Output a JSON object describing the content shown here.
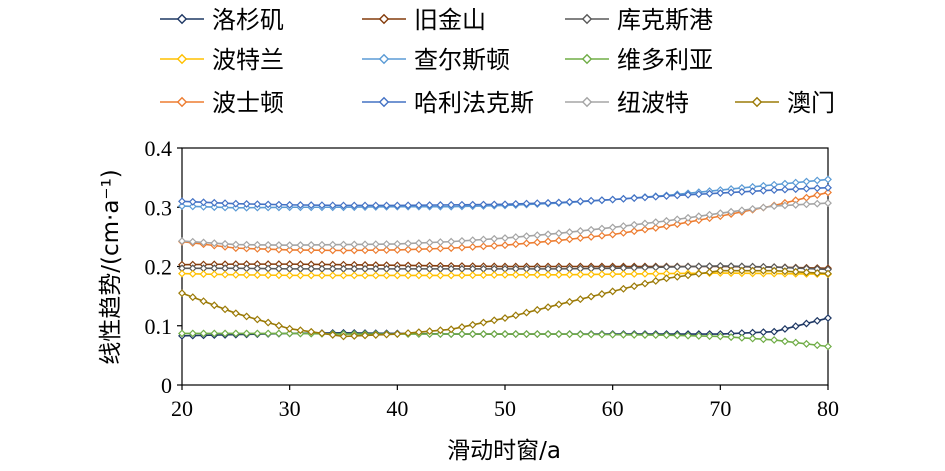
{
  "chart_data": {
    "type": "line",
    "title": "",
    "xlabel": "滑动时窗/a",
    "ylabel": "线性趋势/(cm·a⁻¹)",
    "xlim": [
      20,
      80
    ],
    "ylim": [
      0,
      0.4
    ],
    "xticks": [
      "20",
      "30",
      "40",
      "50",
      "60",
      "70",
      "80"
    ],
    "yticks": [
      "0",
      "0.1",
      "0.2",
      "0.3",
      "0.4"
    ],
    "grid": false,
    "legend_position": "top",
    "x": [
      20,
      25,
      30,
      35,
      40,
      45,
      50,
      55,
      60,
      65,
      70,
      75,
      80
    ],
    "series": [
      {
        "name": "洛杉矶",
        "color": "#1f3864",
        "values": [
          0.083,
          0.085,
          0.087,
          0.088,
          0.087,
          0.086,
          0.086,
          0.086,
          0.086,
          0.086,
          0.086,
          0.09,
          0.113
        ]
      },
      {
        "name": "旧金山",
        "color": "#843c0c",
        "values": [
          0.203,
          0.204,
          0.204,
          0.203,
          0.202,
          0.201,
          0.2,
          0.2,
          0.2,
          0.2,
          0.2,
          0.199,
          0.197
        ]
      },
      {
        "name": "库克斯港",
        "color": "#595959",
        "values": [
          0.197,
          0.197,
          0.196,
          0.196,
          0.196,
          0.196,
          0.196,
          0.196,
          0.197,
          0.199,
          0.201,
          0.199,
          0.195
        ]
      },
      {
        "name": "波特兰",
        "color": "#ffc000",
        "values": [
          0.188,
          0.186,
          0.185,
          0.185,
          0.185,
          0.185,
          0.186,
          0.186,
          0.187,
          0.188,
          0.189,
          0.188,
          0.187
        ]
      },
      {
        "name": "查尔斯顿",
        "color": "#5b9bd5",
        "values": [
          0.302,
          0.299,
          0.3,
          0.3,
          0.301,
          0.301,
          0.303,
          0.307,
          0.313,
          0.32,
          0.329,
          0.338,
          0.347
        ]
      },
      {
        "name": "维多利亚",
        "color": "#70ad47",
        "values": [
          0.087,
          0.087,
          0.087,
          0.086,
          0.086,
          0.086,
          0.086,
          0.086,
          0.085,
          0.084,
          0.082,
          0.076,
          0.065
        ]
      },
      {
        "name": "波士顿",
        "color": "#ed7d31",
        "values": [
          0.242,
          0.231,
          0.228,
          0.227,
          0.228,
          0.231,
          0.236,
          0.244,
          0.254,
          0.268,
          0.285,
          0.303,
          0.325
        ]
      },
      {
        "name": "哈利法克斯",
        "color": "#4472c4",
        "values": [
          0.31,
          0.306,
          0.304,
          0.303,
          0.303,
          0.304,
          0.305,
          0.308,
          0.313,
          0.319,
          0.324,
          0.329,
          0.333
        ]
      },
      {
        "name": "纽波特",
        "color": "#a5a5a5",
        "values": [
          0.243,
          0.237,
          0.236,
          0.237,
          0.238,
          0.242,
          0.248,
          0.256,
          0.266,
          0.277,
          0.29,
          0.302,
          0.307
        ]
      },
      {
        "name": "澳门",
        "color": "#9c7b08",
        "values": [
          0.155,
          0.121,
          0.095,
          0.082,
          0.086,
          0.094,
          0.113,
          0.136,
          0.158,
          0.18,
          0.193,
          0.193,
          0.188
        ]
      }
    ]
  }
}
